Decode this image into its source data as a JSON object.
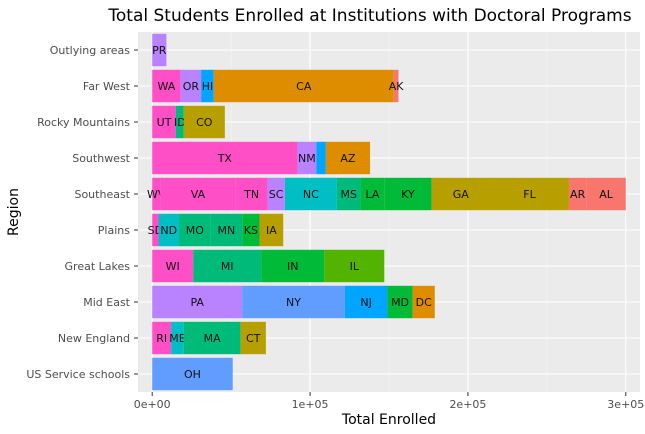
{
  "chart_data": {
    "type": "bar",
    "orientation": "horizontal",
    "stacked": true,
    "title": "Total Students Enrolled at Institutions with Doctoral Programs",
    "xlabel": "Total Enrolled",
    "ylabel": "Region",
    "xlim": [
      -9000,
      309000
    ],
    "x_ticks": [
      0,
      100000,
      200000,
      300000
    ],
    "x_tick_labels": [
      "0e+00",
      "1e+05",
      "2e+05",
      "3e+05"
    ],
    "grid": true,
    "legend": "none",
    "categories": [
      "Outlying areas",
      "Far West",
      "Rocky Mountains",
      "Southwest",
      "Southeast",
      "Plains",
      "Great Lakes",
      "Mid East",
      "New England",
      "US Service schools"
    ],
    "bars": [
      {
        "region": "Outlying areas",
        "segments": [
          {
            "label": "PR",
            "value": 9000,
            "color": "#B983FF"
          }
        ]
      },
      {
        "region": "Far West",
        "segments": [
          {
            "label": "WA",
            "value": 18000,
            "color": "#FF4FC7"
          },
          {
            "label": "OR",
            "value": 13000,
            "color": "#B983FF"
          },
          {
            "label": "HI",
            "value": 8000,
            "color": "#00A5FF"
          },
          {
            "label": "CA",
            "value": 114000,
            "color": "#DE8C00"
          },
          {
            "label": "AK",
            "value": 3000,
            "color": "#F8766D"
          }
        ]
      },
      {
        "region": "Rocky Mountains",
        "segments": [
          {
            "label": "UT",
            "value": 15000,
            "color": "#FF4FC7"
          },
          {
            "label": "ID",
            "value": 5000,
            "color": "#00BA7A"
          },
          {
            "label": "CO",
            "value": 26000,
            "color": "#B79F00"
          }
        ]
      },
      {
        "region": "Southwest",
        "segments": [
          {
            "label": "TX",
            "value": 92000,
            "color": "#FF4FC7"
          },
          {
            "label": "NM",
            "value": 12000,
            "color": "#B983FF"
          },
          {
            "label": "",
            "value": 6000,
            "color": "#00A5FF"
          },
          {
            "label": "AZ",
            "value": 28000,
            "color": "#DE8C00"
          }
        ]
      },
      {
        "region": "Southeast",
        "segments": [
          {
            "label": "WV",
            "value": 5000,
            "color": "#FF4FC7"
          },
          {
            "label": "VA",
            "value": 48000,
            "color": "#FF4FC7"
          },
          {
            "label": "TN",
            "value": 20000,
            "color": "#FF4FC7"
          },
          {
            "label": "SC",
            "value": 11000,
            "color": "#B983FF"
          },
          {
            "label": "NC",
            "value": 33000,
            "color": "#00BFC4"
          },
          {
            "label": "MS",
            "value": 15000,
            "color": "#00BA7A"
          },
          {
            "label": "LA",
            "value": 15000,
            "color": "#00BA38"
          },
          {
            "label": "KY",
            "value": 30000,
            "color": "#00BA38"
          },
          {
            "label": "GA",
            "value": 37000,
            "color": "#B79F00"
          },
          {
            "label": "FL",
            "value": 50000,
            "color": "#B79F00"
          },
          {
            "label": "AR",
            "value": 11000,
            "color": "#F8766D"
          },
          {
            "label": "AL",
            "value": 25000,
            "color": "#F8766D"
          }
        ]
      },
      {
        "region": "Plains",
        "segments": [
          {
            "label": "SD",
            "value": 4000,
            "color": "#FF4FC7"
          },
          {
            "label": "ND",
            "value": 13000,
            "color": "#00BFC4"
          },
          {
            "label": "MO",
            "value": 20000,
            "color": "#00BA7A"
          },
          {
            "label": "MN",
            "value": 20000,
            "color": "#00BA7A"
          },
          {
            "label": "KS",
            "value": 11000,
            "color": "#00BA38"
          },
          {
            "label": "IA",
            "value": 15000,
            "color": "#B79F00"
          }
        ]
      },
      {
        "region": "Great Lakes",
        "segments": [
          {
            "label": "WI",
            "value": 26000,
            "color": "#FF4FC7"
          },
          {
            "label": "MI",
            "value": 43000,
            "color": "#00BA7A"
          },
          {
            "label": "IN",
            "value": 40000,
            "color": "#00BA38"
          },
          {
            "label": "IL",
            "value": 38000,
            "color": "#53B400"
          }
        ]
      },
      {
        "region": "Mid East",
        "segments": [
          {
            "label": "PA",
            "value": 57000,
            "color": "#B983FF"
          },
          {
            "label": "NY",
            "value": 65000,
            "color": "#619CFF"
          },
          {
            "label": "NJ",
            "value": 27000,
            "color": "#00A5FF"
          },
          {
            "label": "MD",
            "value": 16000,
            "color": "#00BA38"
          },
          {
            "label": "DC",
            "value": 14000,
            "color": "#DE8C00"
          }
        ]
      },
      {
        "region": "New England",
        "segments": [
          {
            "label": "RI",
            "value": 12000,
            "color": "#FF4FC7"
          },
          {
            "label": "ME",
            "value": 8000,
            "color": "#00BFC4"
          },
          {
            "label": "MA",
            "value": 36000,
            "color": "#00BA7A"
          },
          {
            "label": "CT",
            "value": 16000,
            "color": "#B79F00"
          }
        ]
      },
      {
        "region": "US Service schools",
        "segments": [
          {
            "label": "OH",
            "value": 51000,
            "color": "#619CFF"
          }
        ]
      }
    ]
  }
}
